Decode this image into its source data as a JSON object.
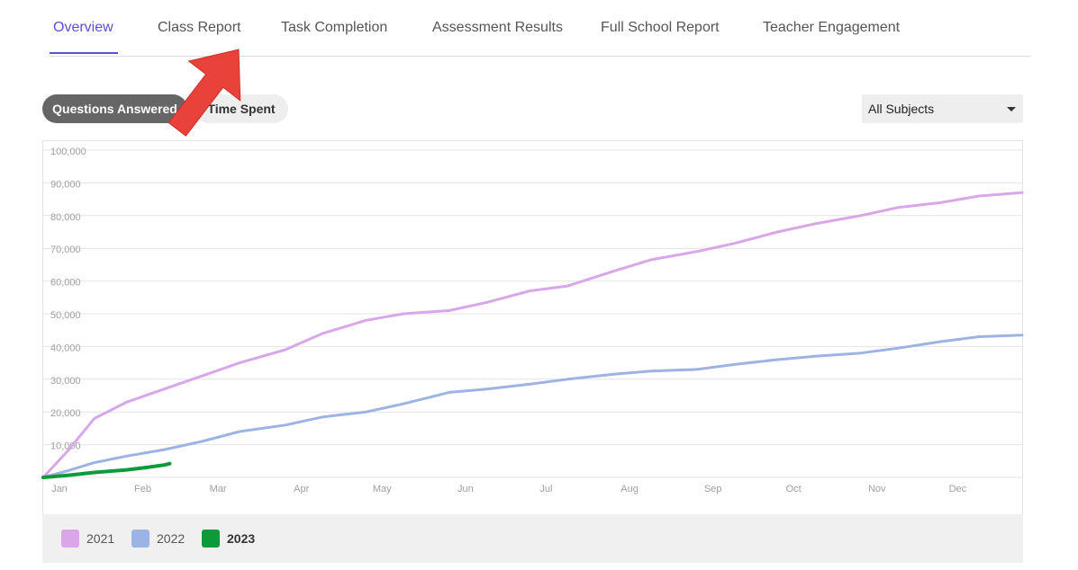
{
  "tabs": [
    {
      "label": "Overview",
      "active": true
    },
    {
      "label": "Class Report",
      "active": false
    },
    {
      "label": "Task Completion",
      "active": false
    },
    {
      "label": "Assessment Results",
      "active": false
    },
    {
      "label": "Full School Report",
      "active": false
    },
    {
      "label": "Teacher Engagement",
      "active": false
    }
  ],
  "toggles": {
    "questions": "Questions Answered",
    "time": "Time Spent"
  },
  "subject_select": {
    "value": "All Subjects"
  },
  "colors": {
    "accent": "#5b4fd4",
    "series_2021": "#d9a6ea",
    "series_2022": "#9db3e3",
    "series_2023": "#0e9a3a",
    "annotation_arrow": "#e8423b"
  },
  "chart_data": {
    "type": "line",
    "title": "",
    "xlabel": "",
    "ylabel": "",
    "ylim": [
      0,
      100000
    ],
    "yticks": [
      "100,000",
      "90,000",
      "80,000",
      "70,000",
      "60,000",
      "50,000",
      "40,000",
      "30,000",
      "20,000",
      "10,000"
    ],
    "xticks": [
      "Jan",
      "Feb",
      "Mar",
      "Apr",
      "May",
      "Jun",
      "Jul",
      "Aug",
      "Sep",
      "Oct",
      "Nov",
      "Dec"
    ],
    "grid": true,
    "legend_position": "bottom",
    "series": [
      {
        "name": "2021",
        "x": [
          "Jan 1",
          "Jan 10",
          "Jan 20",
          "Feb 1",
          "Feb 15",
          "Mar 1",
          "Mar 15",
          "Apr 1",
          "Apr 15",
          "May 1",
          "May 15",
          "Jun 1",
          "Jun 15",
          "Jul 1",
          "Jul 15",
          "Aug 1",
          "Aug 15",
          "Sep 1",
          "Sep 15",
          "Oct 1",
          "Oct 15",
          "Nov 1",
          "Nov 15",
          "Dec 1",
          "Dec 15",
          "Dec 31"
        ],
        "values": [
          0,
          8000,
          18000,
          23000,
          27000,
          31000,
          35000,
          39000,
          44000,
          48000,
          50000,
          51000,
          53500,
          57000,
          58500,
          63000,
          66500,
          69000,
          71500,
          75000,
          77500,
          80000,
          82500,
          84000,
          86000,
          87000
        ]
      },
      {
        "name": "2022",
        "x": [
          "Jan 1",
          "Jan 10",
          "Jan 20",
          "Feb 1",
          "Feb 15",
          "Mar 1",
          "Mar 15",
          "Apr 1",
          "Apr 15",
          "May 1",
          "May 15",
          "Jun 1",
          "Jun 15",
          "Jul 1",
          "Jul 15",
          "Aug 1",
          "Aug 15",
          "Sep 1",
          "Sep 15",
          "Oct 1",
          "Oct 15",
          "Nov 1",
          "Nov 15",
          "Dec 1",
          "Dec 15",
          "Dec 31"
        ],
        "values": [
          0,
          2000,
          4500,
          6500,
          8500,
          11000,
          14000,
          16000,
          18500,
          20000,
          22500,
          26000,
          27000,
          28500,
          30000,
          31500,
          32500,
          33000,
          34500,
          36000,
          37000,
          38000,
          39500,
          41500,
          43000,
          43500
        ]
      },
      {
        "name": "2023",
        "x": [
          "Jan 1",
          "Jan 10",
          "Jan 20",
          "Feb 1",
          "Feb 8",
          "Feb 15",
          "Feb 17"
        ],
        "values": [
          0,
          600,
          1500,
          2300,
          3000,
          3800,
          4200
        ]
      }
    ]
  }
}
